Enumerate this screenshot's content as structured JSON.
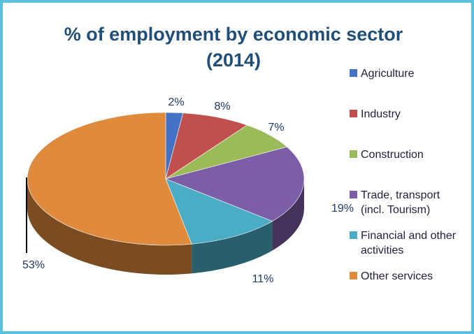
{
  "chart_data": {
    "type": "pie",
    "title_line1": "% of employment by economic sector",
    "title_line2": "(2014)",
    "categories": [
      "Agriculture",
      "Industry",
      "Construction",
      "Trade, transport\n(incl. Tourism)",
      "Financial and other\nactivities",
      "Other services"
    ],
    "values": [
      2,
      8,
      7,
      19,
      11,
      53
    ],
    "labels": [
      "2%",
      "8%",
      "7%",
      "19%",
      "11%",
      "53%"
    ],
    "colors": [
      "#4472c4",
      "#c0504d",
      "#9bbb59",
      "#7b5ea7",
      "#4bacc6",
      "#e08a3c"
    ],
    "legend_position": "right"
  }
}
